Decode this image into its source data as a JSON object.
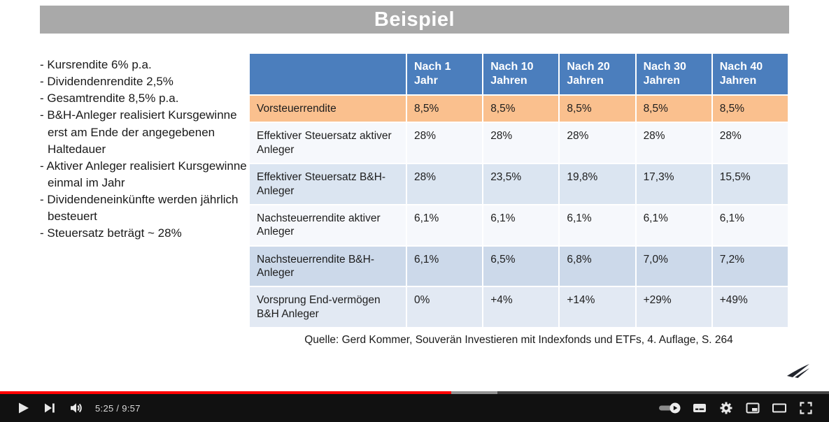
{
  "colors": {
    "title_banner_gray": "#a9a9a9",
    "table_header_blue": "#4b7ebd",
    "highlight_orange": "#fac08e",
    "band_light": "#f6f8fc",
    "band_blue": "#dbe5f1",
    "progress_red": "#ff0000"
  },
  "slide": {
    "title": "Beispiel",
    "bullets": [
      "- Kursrendite 6% p.a.",
      "- Dividendenrendite 2,5%",
      "- Gesamtrendite 8,5% p.a.",
      "- B&H-Anleger realisiert Kursgewinne erst am Ende der angegebenen Haltedauer",
      "- Aktiver Anleger realisiert Kursgewinne einmal im Jahr",
      "- Dividendeneinkünfte werden jährlich besteuert",
      "- Steuersatz beträgt ~ 28%"
    ],
    "table": {
      "headers": [
        "",
        "Nach 1 Jahr",
        "Nach 10 Jahren",
        "Nach 20 Jahren",
        "Nach 30 Jahren",
        "Nach 40 Jahren"
      ],
      "rows": [
        {
          "label": "Vorsteuerrendite",
          "values": [
            "8,5%",
            "8,5%",
            "8,5%",
            "8,5%",
            "8,5%"
          ]
        },
        {
          "label": "Effektiver Steuersatz aktiver Anleger",
          "values": [
            "28%",
            "28%",
            "28%",
            "28%",
            "28%"
          ]
        },
        {
          "label": "Effektiver Steuersatz B&H-Anleger",
          "values": [
            "28%",
            "23,5%",
            "19,8%",
            "17,3%",
            "15,5%"
          ]
        },
        {
          "label": "Nachsteuerrendite aktiver Anleger",
          "values": [
            "6,1%",
            "6,1%",
            "6,1%",
            "6,1%",
            "6,1%"
          ]
        },
        {
          "label": "Nachsteuerrendite B&H-Anleger",
          "values": [
            "6,1%",
            "6,5%",
            "6,8%",
            "7,0%",
            "7,2%"
          ]
        },
        {
          "label": "Vorsprung End-vermögen B&H Anleger",
          "values": [
            "0%",
            "+4%",
            "+14%",
            "+29%",
            "+49%"
          ]
        }
      ]
    },
    "source": "Quelle: Gerd Kommer, Souverän Investieren mit Indexfonds und ETFs, 4. Auflage, S. 264"
  },
  "player": {
    "time": "5:25 / 9:57",
    "progress_percent": 54.4,
    "buffer_percent": 60,
    "icons": [
      "play-icon",
      "next-icon",
      "volume-icon",
      "autoplay-toggle-icon",
      "subtitles-icon",
      "settings-icon",
      "miniplayer-icon",
      "theater-icon",
      "fullscreen-icon",
      "bird-logo-icon"
    ]
  }
}
